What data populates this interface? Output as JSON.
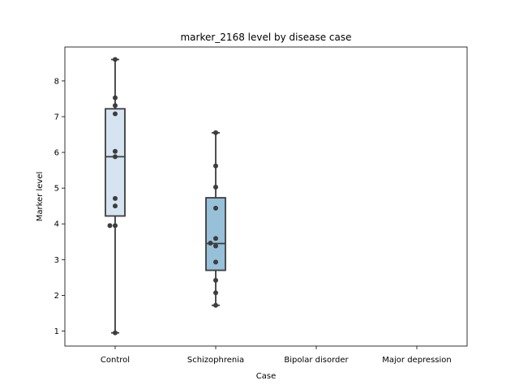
{
  "chart_data": {
    "type": "box",
    "title": "marker_2168 level by disease case",
    "xlabel": "Case",
    "ylabel": "Marker level",
    "categories": [
      "Control",
      "Schizophrenia",
      "Bipolar disorder",
      "Major depression"
    ],
    "ylim": [
      0.58,
      8.95
    ],
    "yticks": [
      1,
      2,
      3,
      4,
      5,
      6,
      7,
      8
    ],
    "grid": false,
    "boxes": [
      {
        "category": "Control",
        "whisker_low": 0.95,
        "q1": 4.22,
        "median": 5.88,
        "q3": 7.22,
        "whisker_high": 8.6,
        "color": "#d6e4f1"
      },
      {
        "category": "Schizophrenia",
        "whisker_low": 1.72,
        "q1": 2.7,
        "median": 3.45,
        "q3": 4.73,
        "whisker_high": 6.55,
        "color": "#97c0d9"
      },
      {
        "category": "Bipolar disorder"
      },
      {
        "category": "Major depression"
      }
    ],
    "points": [
      {
        "category": "Control",
        "values": [
          8.6,
          7.53,
          7.31,
          7.08,
          6.03,
          5.88,
          4.71,
          4.5,
          3.95,
          3.95,
          0.95
        ]
      },
      {
        "category": "Schizophrenia",
        "values": [
          6.55,
          5.62,
          5.03,
          4.44,
          3.59,
          3.46,
          3.38,
          2.93,
          2.42,
          2.07,
          1.72
        ]
      }
    ],
    "point_color": "#3d3d3d",
    "line_color": "#3d3d3d"
  }
}
